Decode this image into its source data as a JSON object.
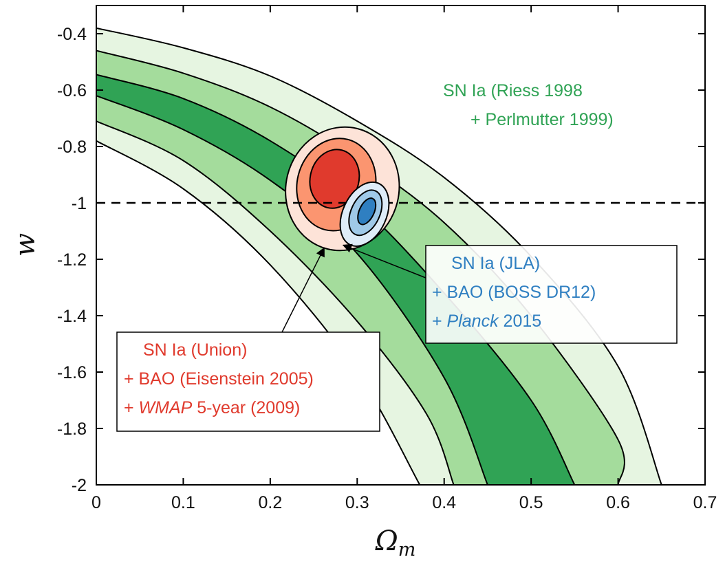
{
  "chart_data": {
    "type": "contour",
    "title": "",
    "xlabel": "Ωm",
    "ylabel": "w",
    "xlim": [
      0,
      0.7
    ],
    "ylim": [
      -2,
      -0.3
    ],
    "xticks": [
      "0",
      "0.1",
      "0.2",
      "0.3",
      "0.4",
      "0.5",
      "0.6",
      "0.7"
    ],
    "yticks": [
      "-2",
      "-1.8",
      "-1.6",
      "-1.4",
      "-1.2",
      "-1",
      "-0.8",
      "-0.6",
      "-0.4"
    ],
    "grid": false,
    "reference_line": {
      "y": -1,
      "style": "dashed"
    },
    "series": [
      {
        "id": "sn",
        "name": "SN Ia (Riess 1998 + Perlmutter 1999)",
        "color": "#30a355",
        "band_fills": [
          "#e6f5e1",
          "#a4dc9c",
          "#30a355"
        ],
        "boundaries": [
          {
            "level": "3σ",
            "side": "left",
            "points": [
              [
                0,
                -0.78
              ],
              [
                0.1,
                -0.95
              ],
              [
                0.2,
                -1.22
              ],
              [
                0.3,
                -1.6
              ],
              [
                0.372,
                -2.0
              ]
            ]
          },
          {
            "level": "2σ",
            "side": "left",
            "points": [
              [
                0,
                -0.71
              ],
              [
                0.1,
                -0.85
              ],
              [
                0.2,
                -1.1
              ],
              [
                0.3,
                -1.42
              ],
              [
                0.38,
                -1.75
              ],
              [
                0.411,
                -2.0
              ]
            ]
          },
          {
            "level": "1σ",
            "side": "left",
            "points": [
              [
                0,
                -0.62
              ],
              [
                0.1,
                -0.74
              ],
              [
                0.2,
                -0.92
              ],
              [
                0.3,
                -1.18
              ],
              [
                0.4,
                -1.62
              ],
              [
                0.45,
                -2.0
              ]
            ]
          },
          {
            "level": "1σ",
            "side": "right",
            "points": [
              [
                0,
                -0.545
              ],
              [
                0.1,
                -0.63
              ],
              [
                0.2,
                -0.78
              ],
              [
                0.3,
                -1.0
              ],
              [
                0.4,
                -1.32
              ],
              [
                0.5,
                -1.7
              ],
              [
                0.55,
                -2.0
              ]
            ]
          },
          {
            "level": "2σ",
            "side": "right",
            "points": [
              [
                0,
                -0.46
              ],
              [
                0.1,
                -0.54
              ],
              [
                0.2,
                -0.66
              ],
              [
                0.3,
                -0.84
              ],
              [
                0.4,
                -1.07
              ],
              [
                0.5,
                -1.4
              ],
              [
                0.6,
                -1.84
              ],
              [
                0.6,
                -2.0
              ]
            ]
          },
          {
            "level": "3σ",
            "side": "right",
            "points": [
              [
                0,
                -0.38
              ],
              [
                0.1,
                -0.45
              ],
              [
                0.2,
                -0.55
              ],
              [
                0.3,
                -0.71
              ],
              [
                0.4,
                -0.91
              ],
              [
                0.5,
                -1.19
              ],
              [
                0.6,
                -1.58
              ],
              [
                0.65,
                -2.0
              ]
            ]
          }
        ]
      },
      {
        "id": "union",
        "name": "SN Ia (Union) + BAO (Eisenstein 2005) + WMAP 5-year (2009)",
        "color": "#e03a2d",
        "level_fills": [
          "#fde3d8",
          "#fb9570",
          "#e03a2d"
        ],
        "ellipses": [
          {
            "level": "3σ",
            "cx": 0.283,
            "cy": -0.95,
            "rx": 0.065,
            "ry": 0.22,
            "tilt_deg": 14
          },
          {
            "level": "2σ",
            "cx": 0.276,
            "cy": -0.935,
            "rx": 0.045,
            "ry": 0.165,
            "tilt_deg": 14
          },
          {
            "level": "1σ",
            "cx": 0.274,
            "cy": -0.915,
            "rx": 0.028,
            "ry": 0.105,
            "tilt_deg": 14
          }
        ]
      },
      {
        "id": "jla",
        "name": "SN Ia (JLA) + BAO (BOSS DR12) + Planck 2015",
        "color": "#2f7fc1",
        "level_fills": [
          "#deecf8",
          "#9fc9e8",
          "#2f7fc1"
        ],
        "ellipses": [
          {
            "level": "3σ",
            "cx": 0.3085,
            "cy": -1.04,
            "rx": 0.025,
            "ry": 0.12,
            "tilt_deg": 25
          },
          {
            "level": "2σ",
            "cx": 0.3095,
            "cy": -1.035,
            "rx": 0.0165,
            "ry": 0.085,
            "tilt_deg": 25
          },
          {
            "level": "1σ",
            "cx": 0.311,
            "cy": -1.03,
            "rx": 0.0085,
            "ry": 0.05,
            "tilt_deg": 25
          }
        ]
      }
    ],
    "annotations": {
      "sn": {
        "color": "#30a355",
        "line1": "SN Ia (Riess 1998",
        "line2": "+ Perlmutter 1999)"
      },
      "jla": {
        "color": "#2f7fc1",
        "line1": "SN Ia (JLA)",
        "line2": "+ BAO (BOSS DR12)",
        "line3_prefix": "+ ",
        "line3_italic": "Planck",
        "line3_suffix": " 2015",
        "arrow_to": [
          0.284,
          -1.15
        ]
      },
      "union": {
        "color": "#e03a2d",
        "line1": "SN Ia (Union)",
        "line2": "+ BAO (Eisenstein 2005)",
        "line3_prefix": "+ ",
        "line3_italic": "WMAP",
        "line3_suffix": " 5-year (2009)",
        "arrow_to": [
          0.262,
          -1.16
        ]
      }
    }
  }
}
